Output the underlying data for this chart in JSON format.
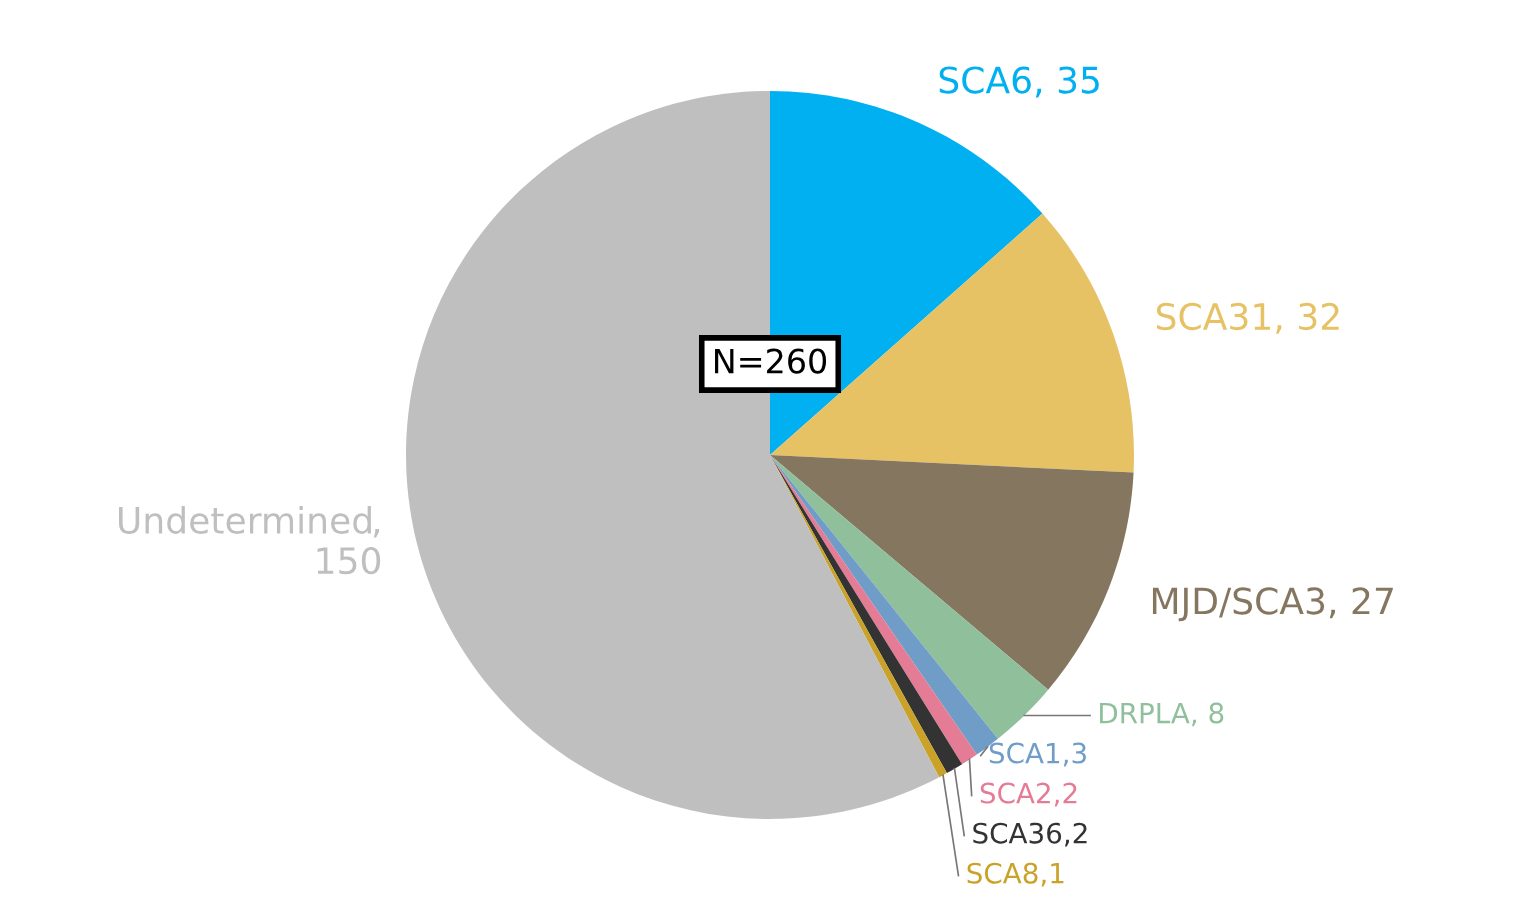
{
  "chart_data": {
    "type": "pie",
    "categories": [
      "SCA6",
      "SCA31",
      "MJD/SCA3",
      "DRPLA",
      "SCA1",
      "SCA2",
      "SCA36",
      "SCA8",
      "Undetermined"
    ],
    "values": [
      35,
      32,
      27,
      8,
      3,
      2,
      2,
      1,
      150
    ],
    "colors": [
      "#00b0f0",
      "#e6c264",
      "#857660",
      "#8fbf9b",
      "#6f9dc8",
      "#e57c95",
      "#333333",
      "#c9a227",
      "#bfbfbf"
    ],
    "value_labels": [
      ", 35",
      ", 32",
      ", 27",
      ", 8",
      ",3",
      ",2",
      ",2",
      ",1",
      ",\n150"
    ],
    "annotations": [
      "N=260"
    ]
  }
}
